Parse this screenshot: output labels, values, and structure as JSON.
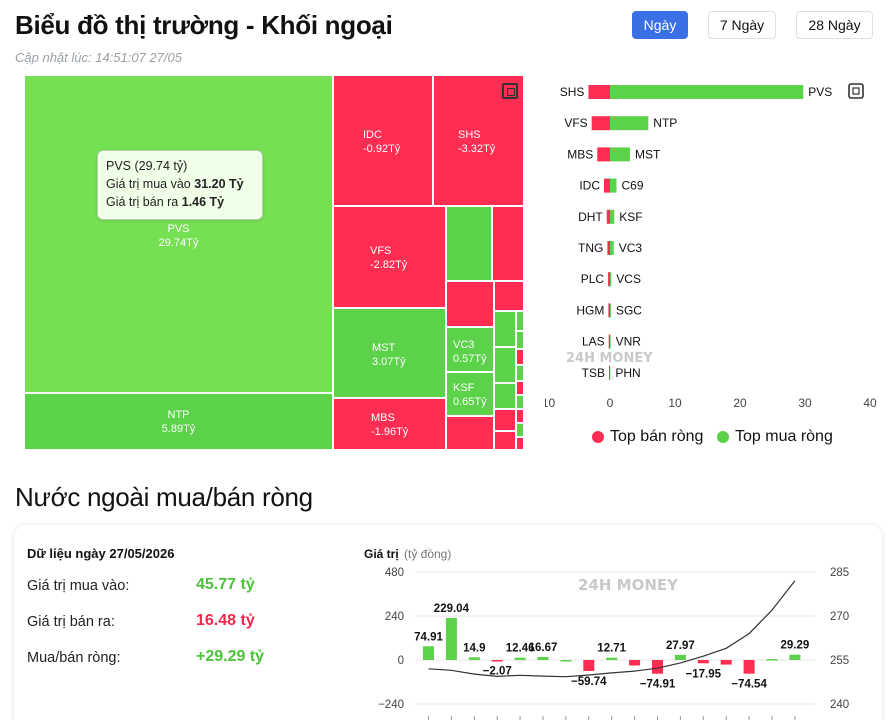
{
  "header": {
    "title": "Biểu đồ thị trường - Khối ngoại",
    "update_time": "Cập nhật lúc: 14:51:07 27/05"
  },
  "range_tabs": [
    {
      "label": "Ngày",
      "active": true
    },
    {
      "label": "7 Ngày",
      "active": false
    },
    {
      "label": "28 Ngày",
      "active": false
    }
  ],
  "treemap": {
    "tiles": [
      {
        "symbol": "PVS",
        "value": "29.74Tỷ"
      },
      {
        "symbol": "NTP",
        "value": "5.89Tỷ"
      },
      {
        "symbol": "IDC",
        "value": "-0.92Tỷ"
      },
      {
        "symbol": "SHS",
        "value": "-3.32Tỷ"
      },
      {
        "symbol": "VFS",
        "value": "-2.82Tỷ"
      },
      {
        "symbol": "MST",
        "value": "3.07Tỷ"
      },
      {
        "symbol": "MBS",
        "value": "-1.96Tỷ"
      },
      {
        "symbol": "VC3",
        "value": "0.57Tỷ"
      },
      {
        "symbol": "KSF",
        "value": "0.65Tỷ"
      }
    ],
    "tooltip": {
      "title": "PVS (29.74 tỷ)",
      "buy_label": "Giá trị mua vào",
      "buy_value": "31.20 Tỷ",
      "sell_label": "Giá trị bán ra",
      "sell_value": "1.46 Tỷ"
    }
  },
  "chart_data": [
    {
      "type": "bar",
      "orientation": "horizontal",
      "series": [
        {
          "name": "Top bán ròng",
          "color": "#ff2d52",
          "categories": [
            "SHS",
            "VFS",
            "MBS",
            "IDC",
            "DHT",
            "TNG",
            "PLC",
            "HGM",
            "LAS",
            "TSB"
          ],
          "values": [
            -3.32,
            -2.82,
            -1.96,
            -0.92,
            -0.5,
            -0.4,
            -0.3,
            -0.25,
            -0.2,
            -0.15
          ]
        },
        {
          "name": "Top mua ròng",
          "color": "#5cd14a",
          "categories": [
            "PVS",
            "NTP",
            "MST",
            "C69",
            "KSF",
            "VC3",
            "VCS",
            "SGC",
            "VNR",
            "PHN"
          ],
          "values": [
            29.74,
            5.89,
            3.07,
            1.0,
            0.65,
            0.57,
            0.2,
            0.15,
            0.1,
            0.05
          ]
        }
      ],
      "x_ticks": [
        "−10",
        "0",
        "10",
        "20",
        "30",
        "40"
      ],
      "xlim": [
        -10,
        40
      ],
      "legend_position": "bottom"
    },
    {
      "type": "bar",
      "title": "Giá trị",
      "ylabel_unit": "(tỷ đồng)",
      "left_ticks": [
        "480",
        "240",
        "0",
        "−240"
      ],
      "right_ticks": [
        "285",
        "270",
        "255",
        "240"
      ],
      "ylim": [
        -240,
        480
      ],
      "y2lim": [
        240,
        285
      ],
      "values": [
        74.91,
        229.04,
        14.9,
        -2.07,
        12.46,
        16.67,
        0,
        -59.74,
        12.71,
        -30,
        -74.91,
        27.97,
        -17.95,
        -25,
        -74.54,
        5,
        29.29
      ],
      "value_labels": [
        "74.91",
        "229.04",
        "14.9",
        "−2.07",
        "12.46",
        "16.67",
        "",
        "−59.74",
        "12.71",
        "",
        "−74.91",
        "27.97",
        "−17.95",
        "",
        "−74.54",
        "",
        "29.29"
      ],
      "line_values": [
        252,
        251.5,
        250.2,
        249.4,
        249.8,
        249.5,
        249.3,
        249.9,
        250.6,
        251.2,
        252.2,
        254,
        256.3,
        259,
        264,
        272,
        282
      ],
      "positive_color": "#5cd14a",
      "negative_color": "#ff2d52"
    }
  ],
  "legend": [
    {
      "label": "Top bán ròng",
      "color": "#ff2d52"
    },
    {
      "label": "Top mua ròng",
      "color": "#5cd14a"
    }
  ],
  "section2": {
    "title": "Nước ngoài mua/bán ròng",
    "date_label": "Dữ liệu ngày 27/05/2026",
    "buy_label": "Giá trị mua vào:",
    "buy_value": "45.77 tỷ",
    "sell_label": "Giá trị bán ra:",
    "sell_value": "16.48 tỷ",
    "net_label": "Mua/bán ròng:",
    "net_value": "+29.29 tỷ",
    "watermark": "24H MONEY"
  },
  "colors": {
    "accent": "#3b6fe6",
    "green": "#5cd14a",
    "red": "#ff2d52"
  }
}
